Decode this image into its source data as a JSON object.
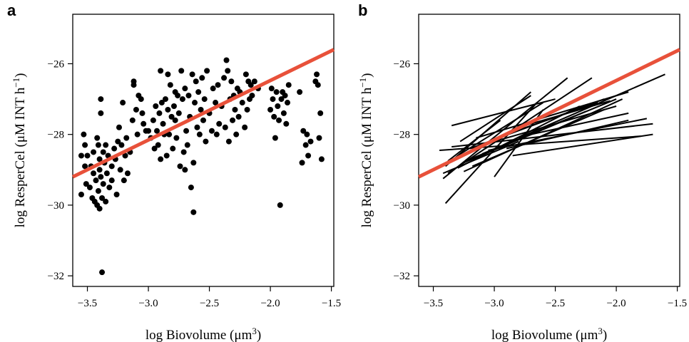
{
  "colors": {
    "fit_line": "#e8513a",
    "points": "#000000",
    "segments": "#000000"
  },
  "chart_data": [
    {
      "panel": "a",
      "type": "scatter",
      "title": "",
      "xlabel_main": "log Biovolume (μm",
      "xlabel_sup": "3",
      "xlabel_end": ")",
      "ylabel_main": "log ResperCel (μM INT h",
      "ylabel_sup": "−1",
      "ylabel_end": ")",
      "xlim": [
        -3.62,
        -1.48
      ],
      "ylim": [
        -32.3,
        -24.6
      ],
      "xticks": [
        -3.5,
        -3.0,
        -2.5,
        -2.0,
        -1.5
      ],
      "xtick_labels": [
        "−3.5",
        "−3.0",
        "−2.5",
        "−2.0",
        "−1.5"
      ],
      "yticks": [
        -32,
        -30,
        -28,
        -26
      ],
      "ytick_labels": [
        "−32",
        "−30",
        "−28",
        "−26"
      ],
      "fit_line": {
        "x": [
          -3.62,
          -1.48
        ],
        "y": [
          -29.2,
          -25.6
        ]
      },
      "points": [
        [
          -3.55,
          -28.6
        ],
        [
          -3.55,
          -29.7
        ],
        [
          -3.53,
          -28.0
        ],
        [
          -3.52,
          -28.3
        ],
        [
          -3.52,
          -28.9
        ],
        [
          -3.51,
          -29.4
        ],
        [
          -3.5,
          -28.6
        ],
        [
          -3.48,
          -29.5
        ],
        [
          -3.47,
          -28.9
        ],
        [
          -3.46,
          -29.8
        ],
        [
          -3.45,
          -28.5
        ],
        [
          -3.45,
          -29.1
        ],
        [
          -3.44,
          -29.9
        ],
        [
          -3.43,
          -29.3
        ],
        [
          -3.42,
          -28.1
        ],
        [
          -3.42,
          -30.0
        ],
        [
          -3.41,
          -29.6
        ],
        [
          -3.41,
          -28.3
        ],
        [
          -3.4,
          -29.0
        ],
        [
          -3.4,
          -30.1
        ],
        [
          -3.4,
          -28.7
        ],
        [
          -3.39,
          -27.0
        ],
        [
          -3.39,
          -27.4
        ],
        [
          -3.39,
          -29.2
        ],
        [
          -3.38,
          -31.9
        ],
        [
          -3.38,
          -29.8
        ],
        [
          -3.37,
          -28.5
        ],
        [
          -3.37,
          -29.4
        ],
        [
          -3.36,
          -28.8
        ],
        [
          -3.35,
          -29.9
        ],
        [
          -3.35,
          -28.3
        ],
        [
          -3.34,
          -29.1
        ],
        [
          -3.33,
          -28.6
        ],
        [
          -3.32,
          -29.5
        ],
        [
          -3.3,
          -28.9
        ],
        [
          -3.3,
          -29.3
        ],
        [
          -3.28,
          -28.4
        ],
        [
          -3.27,
          -28.7
        ],
        [
          -3.26,
          -29.7
        ],
        [
          -3.25,
          -28.2
        ],
        [
          -3.24,
          -27.8
        ],
        [
          -3.23,
          -29.0
        ],
        [
          -3.22,
          -28.3
        ],
        [
          -3.21,
          -27.1
        ],
        [
          -3.2,
          -29.3
        ],
        [
          -3.19,
          -28.6
        ],
        [
          -3.18,
          -28.1
        ],
        [
          -3.17,
          -29.1
        ],
        [
          -3.15,
          -28.5
        ],
        [
          -3.13,
          -27.6
        ],
        [
          -3.12,
          -26.5
        ],
        [
          -3.12,
          -26.6
        ],
        [
          -3.1,
          -27.3
        ],
        [
          -3.09,
          -28.0
        ],
        [
          -3.08,
          -26.9
        ],
        [
          -3.06,
          -27.0
        ],
        [
          -3.05,
          -27.4
        ],
        [
          -3.04,
          -27.7
        ],
        [
          -3.02,
          -27.9
        ],
        [
          -3.0,
          -27.9
        ],
        [
          -2.98,
          -28.1
        ],
        [
          -2.96,
          -27.6
        ],
        [
          -2.95,
          -28.4
        ],
        [
          -2.94,
          -27.2
        ],
        [
          -2.93,
          -27.9
        ],
        [
          -2.92,
          -28.3
        ],
        [
          -2.91,
          -27.4
        ],
        [
          -2.9,
          -26.2
        ],
        [
          -2.9,
          -28.7
        ],
        [
          -2.89,
          -27.1
        ],
        [
          -2.88,
          -27.7
        ],
        [
          -2.87,
          -28.0
        ],
        [
          -2.86,
          -27.0
        ],
        [
          -2.85,
          -28.6
        ],
        [
          -2.84,
          -26.3
        ],
        [
          -2.84,
          -27.3
        ],
        [
          -2.83,
          -28.0
        ],
        [
          -2.82,
          -26.6
        ],
        [
          -2.81,
          -27.5
        ],
        [
          -2.8,
          -28.4
        ],
        [
          -2.79,
          -27.2
        ],
        [
          -2.78,
          -26.8
        ],
        [
          -2.78,
          -27.6
        ],
        [
          -2.77,
          -28.1
        ],
        [
          -2.76,
          -26.9
        ],
        [
          -2.75,
          -27.4
        ],
        [
          -2.74,
          -28.9
        ],
        [
          -2.73,
          -26.2
        ],
        [
          -2.72,
          -27.0
        ],
        [
          -2.71,
          -28.5
        ],
        [
          -2.7,
          -26.7
        ],
        [
          -2.7,
          -29.0
        ],
        [
          -2.69,
          -27.9
        ],
        [
          -2.68,
          -28.3
        ],
        [
          -2.67,
          -26.9
        ],
        [
          -2.66,
          -27.5
        ],
        [
          -2.65,
          -29.5
        ],
        [
          -2.64,
          -26.3
        ],
        [
          -2.63,
          -30.2
        ],
        [
          -2.63,
          -28.8
        ],
        [
          -2.62,
          -27.1
        ],
        [
          -2.61,
          -26.5
        ],
        [
          -2.6,
          -27.8
        ],
        [
          -2.59,
          -26.8
        ],
        [
          -2.58,
          -28.0
        ],
        [
          -2.57,
          -27.3
        ],
        [
          -2.56,
          -26.4
        ],
        [
          -2.55,
          -27.6
        ],
        [
          -2.54,
          -27.0
        ],
        [
          -2.53,
          -28.2
        ],
        [
          -2.52,
          -26.2
        ],
        [
          -2.5,
          -27.4
        ],
        [
          -2.48,
          -27.9
        ],
        [
          -2.47,
          -26.7
        ],
        [
          -2.45,
          -27.1
        ],
        [
          -2.44,
          -28.0
        ],
        [
          -2.43,
          -26.6
        ],
        [
          -2.42,
          -27.7
        ],
        [
          -2.4,
          -27.2
        ],
        [
          -2.38,
          -26.4
        ],
        [
          -2.37,
          -27.8
        ],
        [
          -2.36,
          -25.9
        ],
        [
          -2.35,
          -26.2
        ],
        [
          -2.34,
          -28.2
        ],
        [
          -2.33,
          -27.0
        ],
        [
          -2.32,
          -26.5
        ],
        [
          -2.31,
          -27.6
        ],
        [
          -2.3,
          -26.9
        ],
        [
          -2.29,
          -27.3
        ],
        [
          -2.28,
          -28.0
        ],
        [
          -2.27,
          -26.7
        ],
        [
          -2.26,
          -27.5
        ],
        [
          -2.25,
          -26.8
        ],
        [
          -2.23,
          -27.1
        ],
        [
          -2.21,
          -27.8
        ],
        [
          -2.2,
          -26.3
        ],
        [
          -2.19,
          -27.3
        ],
        [
          -2.18,
          -26.5
        ],
        [
          -2.17,
          -27.0
        ],
        [
          -2.16,
          -26.6
        ],
        [
          -2.15,
          -26.9
        ],
        [
          -2.13,
          -26.5
        ],
        [
          -2.1,
          -26.7
        ],
        [
          -2.0,
          -27.3
        ],
        [
          -1.99,
          -26.7
        ],
        [
          -1.98,
          -27.0
        ],
        [
          -1.97,
          -27.5
        ],
        [
          -1.96,
          -28.1
        ],
        [
          -1.95,
          -26.8
        ],
        [
          -1.94,
          -27.2
        ],
        [
          -1.93,
          -27.6
        ],
        [
          -1.92,
          -30.0
        ],
        [
          -1.91,
          -27.0
        ],
        [
          -1.9,
          -26.8
        ],
        [
          -1.89,
          -27.4
        ],
        [
          -1.88,
          -26.9
        ],
        [
          -1.87,
          -27.7
        ],
        [
          -1.86,
          -27.1
        ],
        [
          -1.85,
          -26.6
        ],
        [
          -1.76,
          -26.8
        ],
        [
          -1.74,
          -28.8
        ],
        [
          -1.73,
          -27.9
        ],
        [
          -1.71,
          -28.3
        ],
        [
          -1.7,
          -28.0
        ],
        [
          -1.69,
          -28.6
        ],
        [
          -1.67,
          -28.2
        ],
        [
          -1.63,
          -26.5
        ],
        [
          -1.62,
          -26.3
        ],
        [
          -1.61,
          -26.6
        ],
        [
          -1.6,
          -28.1
        ],
        [
          -1.59,
          -27.4
        ],
        [
          -1.58,
          -28.7
        ]
      ]
    },
    {
      "panel": "b",
      "type": "line",
      "title": "",
      "xlabel_main": "log Biovolume (μm",
      "xlabel_sup": "3",
      "xlabel_end": ")",
      "ylabel_main": "log ResperCel (μM INT h",
      "ylabel_sup": "−1",
      "ylabel_end": ")",
      "xlim": [
        -3.62,
        -1.48
      ],
      "ylim": [
        -32.3,
        -24.6
      ],
      "xticks": [
        -3.5,
        -3.0,
        -2.5,
        -2.0,
        -1.5
      ],
      "xtick_labels": [
        "−3.5",
        "−3.0",
        "−2.5",
        "−2.0",
        "−1.5"
      ],
      "yticks": [
        -32,
        -30,
        -28,
        -26
      ],
      "ytick_labels": [
        "−32",
        "−30",
        "−28",
        "−26"
      ],
      "fit_line": {
        "x": [
          -3.62,
          -1.48
        ],
        "y": [
          -29.2,
          -25.6
        ]
      },
      "segments": [
        [
          [
            -3.4,
            -29.95
          ],
          [
            -2.65,
            -27.1
          ]
        ],
        [
          [
            -3.42,
            -29.25
          ],
          [
            -2.4,
            -26.4
          ]
        ],
        [
          [
            -3.45,
            -28.45
          ],
          [
            -1.8,
            -28.05
          ]
        ],
        [
          [
            -3.4,
            -28.9
          ],
          [
            -2.7,
            -26.8
          ]
        ],
        [
          [
            -3.38,
            -29.1
          ],
          [
            -2.2,
            -26.4
          ]
        ],
        [
          [
            -3.35,
            -27.75
          ],
          [
            -2.5,
            -27.0
          ]
        ],
        [
          [
            -3.35,
            -28.35
          ],
          [
            -1.7,
            -27.7
          ]
        ],
        [
          [
            -3.3,
            -28.6
          ],
          [
            -2.6,
            -27.1
          ]
        ],
        [
          [
            -3.3,
            -28.95
          ],
          [
            -2.3,
            -27.2
          ]
        ],
        [
          [
            -3.28,
            -28.2
          ],
          [
            -2.7,
            -26.9
          ]
        ],
        [
          [
            -3.25,
            -28.8
          ],
          [
            -2.35,
            -27.5
          ]
        ],
        [
          [
            -3.25,
            -29.05
          ],
          [
            -1.95,
            -27.0
          ]
        ],
        [
          [
            -3.2,
            -28.4
          ],
          [
            -2.1,
            -27.0
          ]
        ],
        [
          [
            -3.2,
            -28.7
          ],
          [
            -2.0,
            -27.0
          ]
        ],
        [
          [
            -3.18,
            -28.9
          ],
          [
            -2.1,
            -27.3
          ]
        ],
        [
          [
            -3.15,
            -28.1
          ],
          [
            -1.9,
            -26.8
          ]
        ],
        [
          [
            -3.1,
            -28.55
          ],
          [
            -2.25,
            -27.35
          ]
        ],
        [
          [
            -3.05,
            -28.45
          ],
          [
            -1.75,
            -27.55
          ]
        ],
        [
          [
            -3.05,
            -28.25
          ],
          [
            -2.0,
            -27.2
          ]
        ],
        [
          [
            -3.0,
            -29.2
          ],
          [
            -2.6,
            -27.3
          ]
        ],
        [
          [
            -2.95,
            -28.05
          ],
          [
            -2.15,
            -27.1
          ]
        ],
        [
          [
            -2.9,
            -28.4
          ],
          [
            -1.9,
            -27.6
          ]
        ],
        [
          [
            -2.85,
            -28.6
          ],
          [
            -1.7,
            -28.0
          ]
        ],
        [
          [
            -3.42,
            -29.1
          ],
          [
            -2.8,
            -28.2
          ]
        ],
        [
          [
            -3.38,
            -28.75
          ],
          [
            -2.95,
            -27.6
          ]
        ],
        [
          [
            -2.8,
            -28.1
          ],
          [
            -1.6,
            -26.3
          ]
        ],
        [
          [
            -2.75,
            -27.75
          ],
          [
            -2.05,
            -27.05
          ]
        ],
        [
          [
            -2.7,
            -28.0
          ],
          [
            -1.9,
            -27.4
          ]
        ]
      ]
    }
  ]
}
